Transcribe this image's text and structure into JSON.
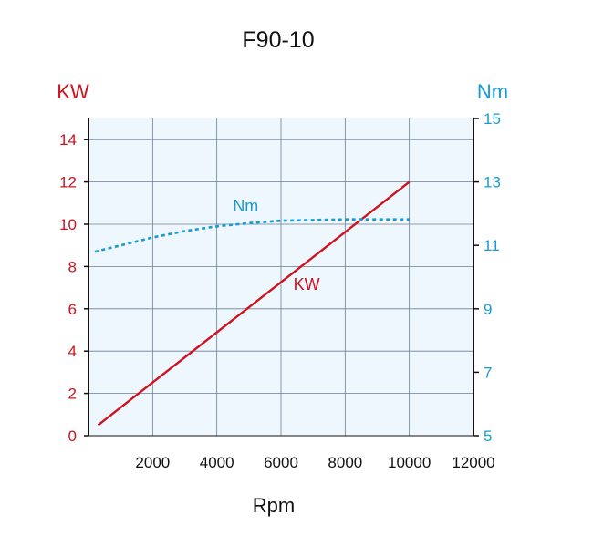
{
  "chart_data": {
    "type": "line",
    "title": "F90-10",
    "xlabel": "Rpm",
    "xlim": [
      0,
      12000
    ],
    "x_ticks": [
      "2000",
      "4000",
      "6000",
      "8000",
      "10000",
      "12000"
    ],
    "left_axis": {
      "unit": "KW",
      "ylim": [
        0,
        15
      ],
      "ticks": [
        "0",
        "2",
        "4",
        "6",
        "8",
        "10",
        "12",
        "14"
      ],
      "color": "#d0121f"
    },
    "right_axis": {
      "unit": "Nm",
      "ylim": [
        5,
        15
      ],
      "ticks": [
        "5",
        "7",
        "9",
        "11",
        "13",
        "15"
      ],
      "color": "#1a9bd0"
    },
    "series": [
      {
        "name": "KW",
        "axis": "left",
        "color": "#d0121f",
        "style": "solid",
        "x": [
          300,
          10000
        ],
        "y": [
          0.5,
          12
        ]
      },
      {
        "name": "Nm",
        "axis": "right",
        "color": "#1a9bd0",
        "style": "dashed",
        "x": [
          200,
          1000,
          2000,
          3000,
          4000,
          5000,
          6000,
          7000,
          8000,
          9000,
          10000
        ],
        "y": [
          10.8,
          11.0,
          11.25,
          11.45,
          11.6,
          11.7,
          11.78,
          11.8,
          11.82,
          11.82,
          11.82
        ]
      }
    ],
    "grid": true,
    "background": "#eef7fd"
  }
}
